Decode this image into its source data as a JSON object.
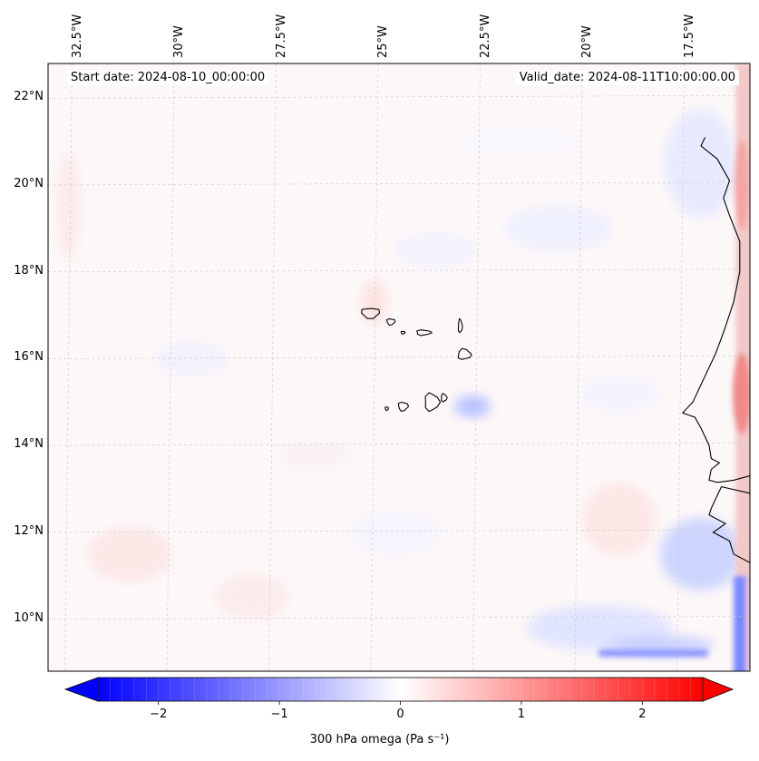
{
  "map": {
    "title_left": "Start date: 2024-08-10_00:00:00",
    "title_right": "Valid_date: 2024-08-11T10:00:00.00",
    "variable": "300 hPa omega",
    "units_label": "(Pa s⁻¹)",
    "extent": {
      "lon_min": -33.0,
      "lon_max": -15.8,
      "lat_min": 8.8,
      "lat_max": 22.8
    },
    "lon_ticks": [
      "32.5°W",
      "30°W",
      "27.5°W",
      "25°W",
      "22.5°W",
      "20°W",
      "17.5°W"
    ],
    "lon_tick_values": [
      -32.5,
      -30.0,
      -27.5,
      -25.0,
      -22.5,
      -20.0,
      -17.5
    ],
    "lat_ticks": [
      "22°N",
      "20°N",
      "18°N",
      "16°N",
      "14°N",
      "12°N",
      "10°N"
    ],
    "lat_tick_values": [
      22,
      20,
      18,
      16,
      14,
      12,
      10
    ],
    "colorbar": {
      "ticks": [
        "−2",
        "−1",
        "0",
        "1",
        "2"
      ],
      "tick_values": [
        -2,
        -1,
        0,
        1,
        2
      ],
      "range": [
        -2.5,
        2.5
      ],
      "extend": "both",
      "colormap": "bwr",
      "color_low": "#0000ff",
      "color_mid": "#ffffff",
      "color_high": "#ff0000"
    },
    "coastline_color": "#000000",
    "gridline_color": "#c8c8c8"
  }
}
